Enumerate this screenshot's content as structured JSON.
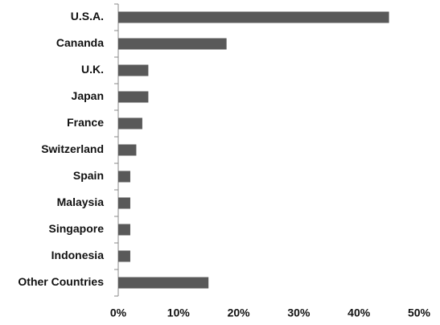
{
  "chart_data": {
    "type": "bar",
    "orientation": "horizontal",
    "categories": [
      "U.S.A.",
      "Cananda",
      "U.K.",
      "Japan",
      "France",
      "Switzerland",
      "Spain",
      "Malaysia",
      "Singapore",
      "Indonesia",
      "Other Countries"
    ],
    "values": [
      45,
      18,
      5,
      5,
      4,
      3,
      2,
      2,
      2,
      2,
      15
    ],
    "color": "#595959",
    "xlim": [
      0,
      50
    ],
    "xticks": [
      {
        "value": 0,
        "label": "0%"
      },
      {
        "value": 10,
        "label": "10%"
      },
      {
        "value": 20,
        "label": "20%"
      },
      {
        "value": 30,
        "label": "30%"
      },
      {
        "value": 40,
        "label": "40%"
      },
      {
        "value": 50,
        "label": "50%"
      }
    ],
    "grid": false
  }
}
